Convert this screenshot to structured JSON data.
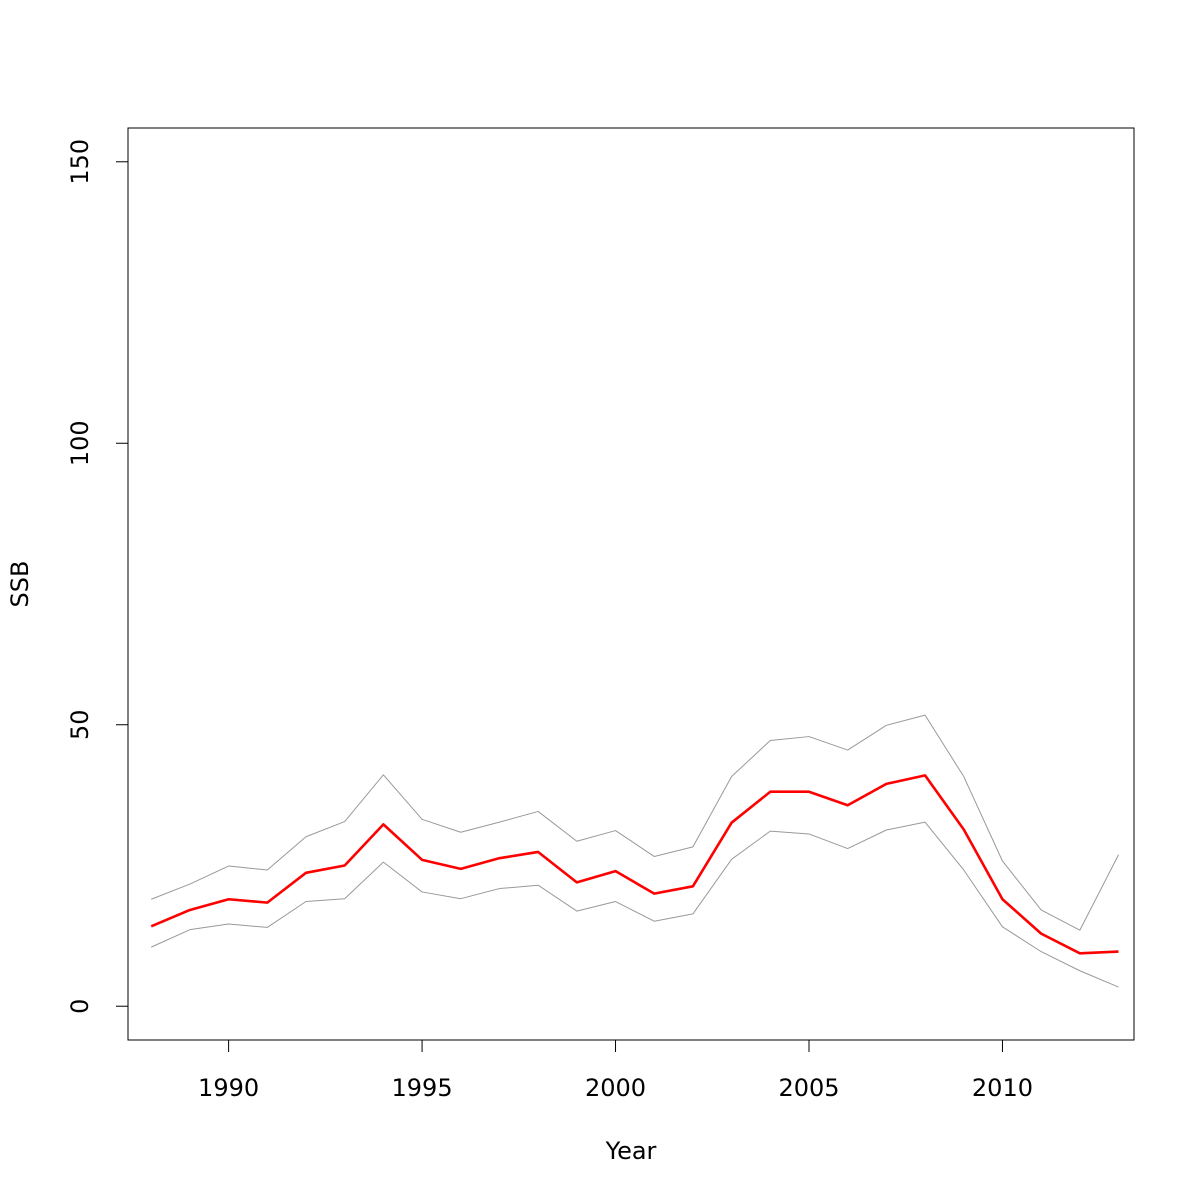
{
  "chart_data": {
    "type": "line",
    "title": "",
    "xlabel": "Year",
    "ylabel": "SSB",
    "xlim": [
      1987.4,
      2013.4
    ],
    "ylim": [
      -6,
      156
    ],
    "x_ticks": [
      1990,
      1995,
      2000,
      2005,
      2010
    ],
    "y_ticks": [
      0,
      50,
      100,
      150
    ],
    "x_tick_labels": [
      "1990",
      "1995",
      "2000",
      "2005",
      "2010"
    ],
    "y_tick_labels": [
      "0",
      "50",
      "100",
      "150"
    ],
    "grid": false,
    "legend": "none",
    "x": [
      1988,
      1989,
      1990,
      1991,
      1992,
      1993,
      1994,
      1995,
      1996,
      1997,
      1998,
      1999,
      2000,
      2001,
      2002,
      2003,
      2004,
      2005,
      2006,
      2007,
      2008,
      2009,
      2010,
      2011,
      2012,
      2013
    ],
    "series": [
      {
        "role": "estimate",
        "color": "#ff0000",
        "values": [
          14.2,
          17.1,
          19.0,
          18.4,
          23.7,
          25.0,
          32.3,
          26.0,
          24.4,
          26.3,
          27.4,
          22.0,
          24.0,
          20.0,
          21.3,
          32.6,
          38.1,
          38.1,
          35.7,
          39.5,
          41.0,
          31.4,
          19.0,
          12.9,
          9.4,
          9.7
        ]
      },
      {
        "role": "upper-bound",
        "color": "#999999",
        "values": [
          19.0,
          21.7,
          24.9,
          24.2,
          30.1,
          32.8,
          41.1,
          33.2,
          30.9,
          32.7,
          34.6,
          29.3,
          31.2,
          26.6,
          28.3,
          40.8,
          47.2,
          47.9,
          45.5,
          49.9,
          51.7,
          40.8,
          25.8,
          17.1,
          13.5,
          26.9
        ]
      },
      {
        "role": "lower-bound",
        "color": "#999999",
        "values": [
          10.5,
          13.6,
          14.6,
          14.0,
          18.6,
          19.1,
          25.6,
          20.3,
          19.1,
          20.9,
          21.5,
          16.9,
          18.6,
          15.1,
          16.4,
          26.1,
          31.1,
          30.6,
          28.0,
          31.3,
          32.7,
          24.2,
          14.1,
          9.7,
          6.3,
          3.4
        ]
      }
    ]
  }
}
